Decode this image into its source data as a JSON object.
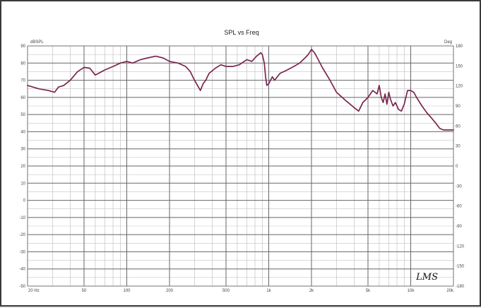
{
  "chart_data": {
    "type": "line",
    "title": "SPL vs Freq",
    "left_unit": "dBSPL",
    "right_unit": "Deg",
    "xscale": "log",
    "xlim": [
      20,
      20000
    ],
    "ylim": [
      -50,
      90
    ],
    "y2lim": [
      -180,
      180
    ],
    "grid": true,
    "x_tick_labels": [
      {
        "value": 20,
        "label": "20 Hz"
      },
      {
        "value": 50,
        "label": "50"
      },
      {
        "value": 100,
        "label": "100"
      },
      {
        "value": 200,
        "label": "200"
      },
      {
        "value": 500,
        "label": "500"
      },
      {
        "value": 1000,
        "label": "1k"
      },
      {
        "value": 2000,
        "label": "2k"
      },
      {
        "value": 5000,
        "label": "5k"
      },
      {
        "value": 10000,
        "label": "10k"
      },
      {
        "value": 20000,
        "label": "20k"
      }
    ],
    "y_ticks": [
      90,
      80,
      70,
      60,
      50,
      40,
      30,
      20,
      10,
      0,
      -10,
      -20,
      -30,
      -40,
      -50
    ],
    "y2_ticks": [
      180,
      150,
      120,
      90,
      60,
      30,
      0,
      -30,
      -60,
      -90,
      -120,
      -150,
      -180
    ],
    "series": [
      {
        "color": "#7a2550",
        "x": [
          20,
          24,
          28,
          31,
          33,
          36,
          40,
          45,
          50,
          55,
          60,
          70,
          80,
          90,
          100,
          110,
          125,
          140,
          160,
          180,
          200,
          230,
          260,
          280,
          300,
          320,
          330,
          345,
          360,
          380,
          420,
          460,
          500,
          560,
          620,
          700,
          760,
          820,
          880,
          900,
          930,
          950,
          970,
          1000,
          1060,
          1100,
          1200,
          1350,
          1500,
          1650,
          1800,
          1900,
          2000,
          2100,
          2200,
          2400,
          2700,
          3000,
          3500,
          4000,
          4300,
          4600,
          5000,
          5400,
          5800,
          6000,
          6200,
          6400,
          6600,
          6800,
          7000,
          7200,
          7500,
          7800,
          8200,
          8600,
          9000,
          9500,
          10000,
          10500,
          11000,
          12000,
          13000,
          14000,
          15000,
          16000,
          17000,
          18000,
          19000,
          20000
        ],
        "y": [
          67,
          65,
          64,
          63,
          66,
          67,
          70,
          75,
          77.5,
          77,
          73,
          76,
          78,
          80,
          81,
          80,
          82,
          83,
          84,
          83,
          81,
          80,
          78,
          75,
          70,
          66,
          64,
          68,
          70,
          74,
          77,
          79,
          78,
          78,
          79,
          82,
          81,
          84,
          86,
          85,
          80,
          72,
          67,
          68,
          72,
          70,
          74,
          76,
          78,
          80,
          83,
          85,
          88,
          86,
          83,
          77,
          70,
          63,
          58,
          54,
          52,
          57,
          60,
          64,
          62,
          67,
          60,
          57,
          62,
          56,
          63,
          59,
          55,
          57,
          53,
          52,
          56,
          64,
          64,
          63,
          60,
          55,
          51,
          48,
          45,
          42,
          41,
          41,
          41,
          41
        ]
      }
    ]
  },
  "logo": "LMS"
}
